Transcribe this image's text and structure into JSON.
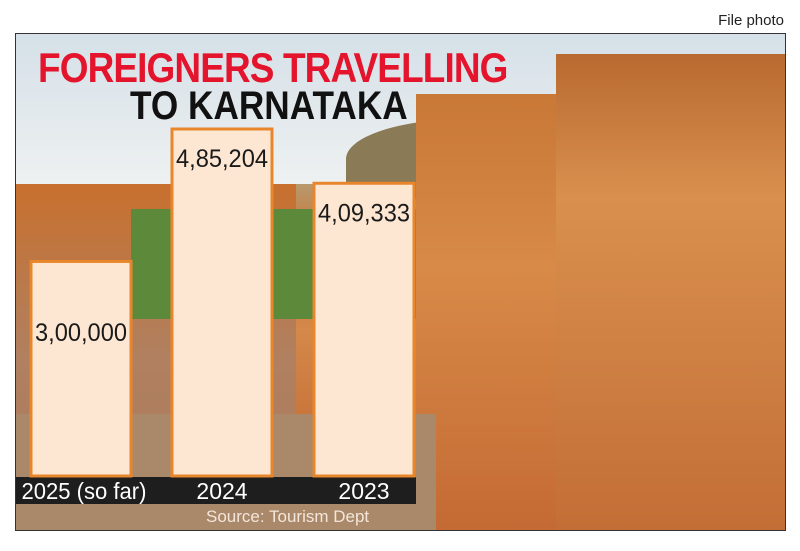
{
  "file_photo_label": "File photo",
  "chart_data": {
    "type": "bar",
    "title_line1": "FOREIGNERS TRAVELLING",
    "title_line2": "TO KARNATAKA",
    "categories": [
      "2025 (so far)",
      "2024",
      "2023"
    ],
    "values": [
      300000,
      485204,
      409333
    ],
    "value_labels": [
      "3,00,000",
      "4,85,204",
      "4,09,333"
    ],
    "source": "Source: Tourism Dept",
    "grid": false,
    "colors": {
      "bar_fill": "#fde7d2",
      "bar_border": "#e8862c",
      "category_band": "#1e1e1e",
      "title_red": "#e3142c"
    }
  }
}
